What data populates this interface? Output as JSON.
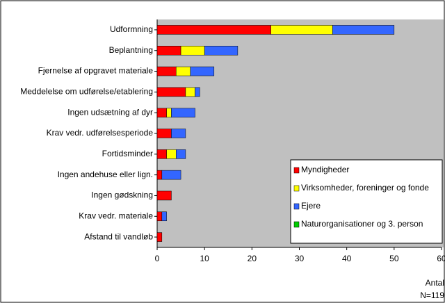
{
  "chart_data": {
    "type": "stacked-barh",
    "categories": [
      "Udformning",
      "Beplantning",
      "Fjernelse af opgravet materiale",
      "Meddelelse om udførelse/etablering",
      "Ingen udsætning af dyr",
      "Krav vedr. udførelsesperiode",
      "Fortidsminder",
      "Ingen andehuse eller lign.",
      "Ingen gødskning",
      "Krav vedr. materiale",
      "Afstand til vandløb"
    ],
    "series": [
      {
        "name": "Myndigheder",
        "color": "#ff0000",
        "values": [
          24,
          5,
          4,
          6,
          2,
          3,
          2,
          1,
          3,
          1,
          1
        ]
      },
      {
        "name": "Virksomheder, foreninger og fonde",
        "color": "#ffff00",
        "values": [
          13,
          5,
          3,
          2,
          1,
          0,
          2,
          0,
          0,
          0,
          0
        ]
      },
      {
        "name": "Ejere",
        "color": "#3366ff",
        "values": [
          13,
          7,
          5,
          1,
          5,
          3,
          2,
          4,
          0,
          1,
          0
        ]
      },
      {
        "name": "Naturorganisationer og 3. person",
        "color": "#00cc00",
        "values": [
          0,
          0,
          0,
          0,
          0,
          0,
          0,
          0,
          0,
          0,
          0
        ]
      }
    ],
    "xlim": [
      0,
      60
    ],
    "xticks": [
      0,
      10,
      20,
      30,
      40,
      50,
      60
    ],
    "x_label": "Antal",
    "annotation": "N=119",
    "legend": "lower-right"
  }
}
